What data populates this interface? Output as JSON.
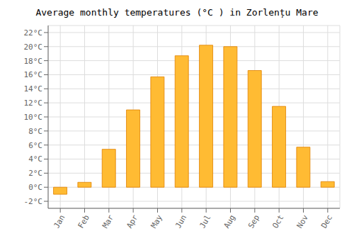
{
  "chart_data": {
    "type": "bar",
    "title": "Average monthly temperatures (°C ) in Zorlențu Mare",
    "categories": [
      "Jan",
      "Feb",
      "Mar",
      "Apr",
      "May",
      "Jun",
      "Jul",
      "Aug",
      "Sep",
      "Oct",
      "Nov",
      "Dec"
    ],
    "values": [
      -1.0,
      0.7,
      5.4,
      11.0,
      15.7,
      18.7,
      20.2,
      20.0,
      16.6,
      11.5,
      5.7,
      0.8
    ],
    "color": "#FFBB33",
    "ylim": [
      -3,
      23
    ],
    "yticks": [
      {
        "value": -2,
        "label": "-2°C"
      },
      {
        "value": 0,
        "label": "0°C"
      },
      {
        "value": 2,
        "label": "2°C"
      },
      {
        "value": 4,
        "label": "4°C"
      },
      {
        "value": 6,
        "label": "6°C"
      },
      {
        "value": 8,
        "label": "8°C"
      },
      {
        "value": 10,
        "label": "10°C"
      },
      {
        "value": 12,
        "label": "12°C"
      },
      {
        "value": 14,
        "label": "14°C"
      },
      {
        "value": 16,
        "label": "16°C"
      },
      {
        "value": 18,
        "label": "18°C"
      },
      {
        "value": 20,
        "label": "20°C"
      },
      {
        "value": 22,
        "label": "22°C"
      }
    ],
    "grid": true
  }
}
